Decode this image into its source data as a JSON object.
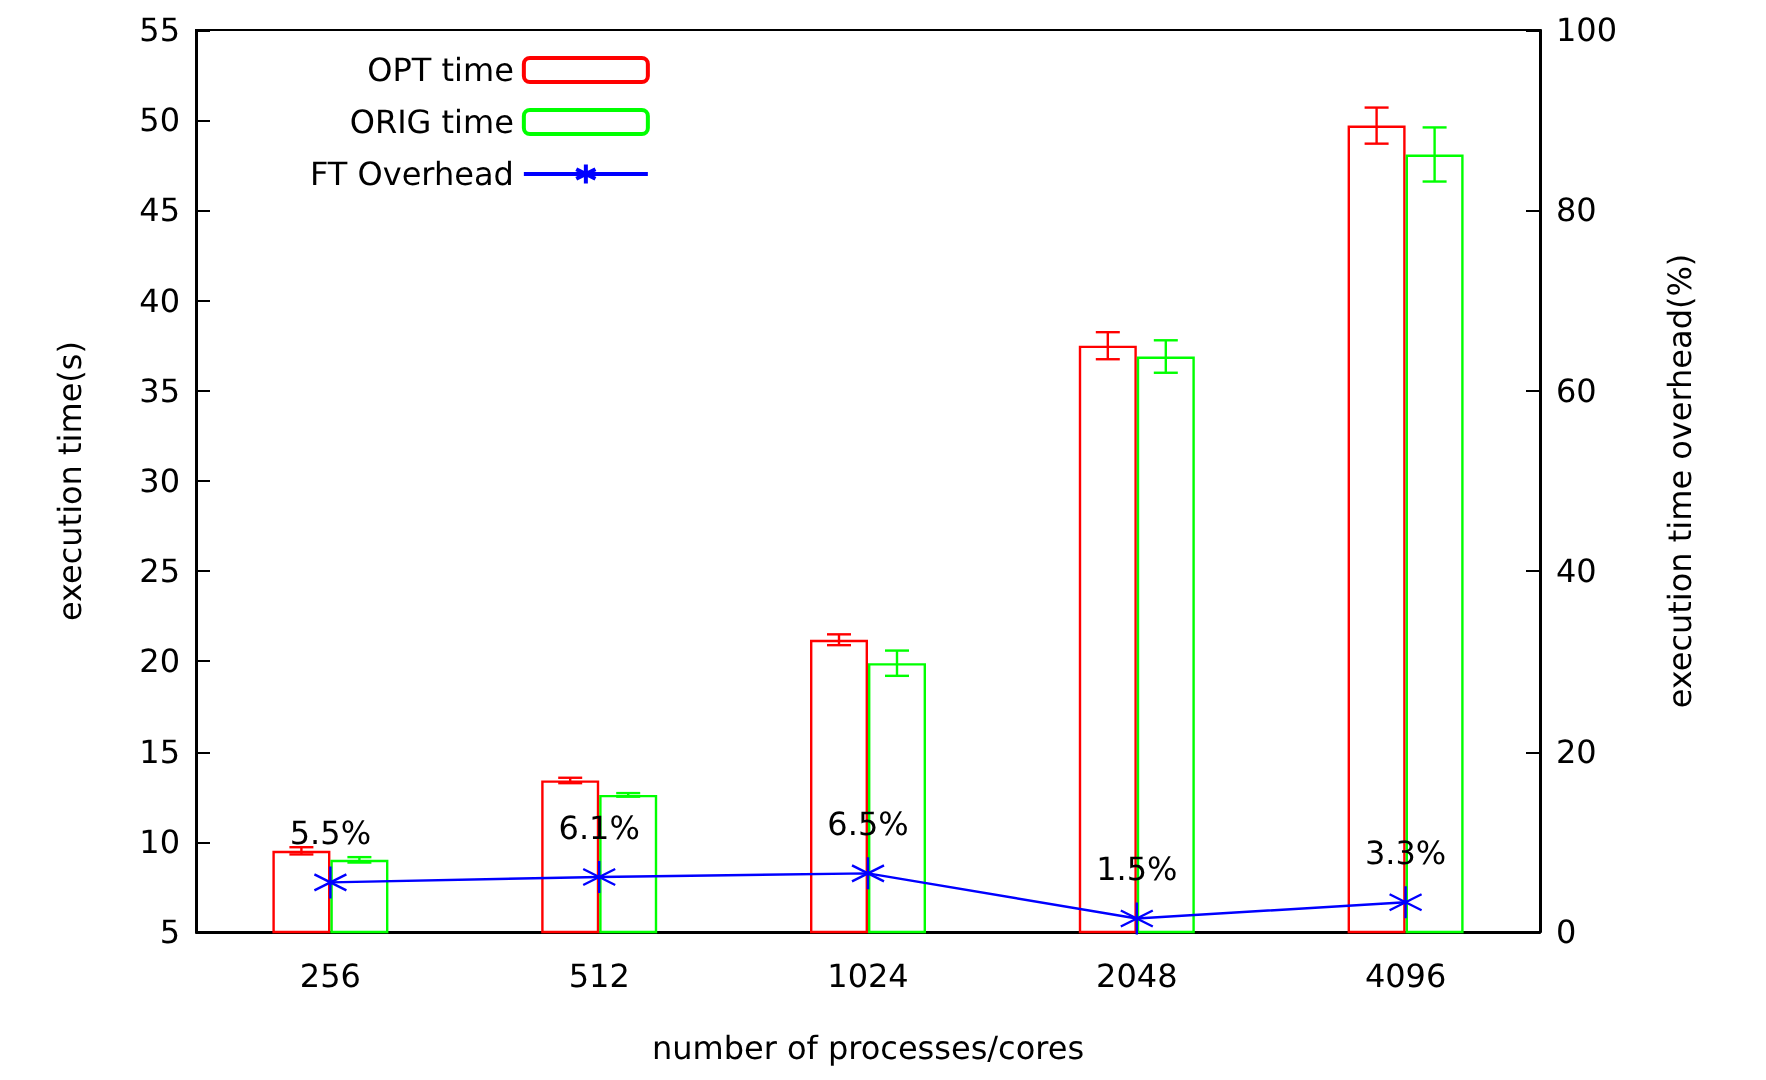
{
  "chart_data": {
    "type": "bar",
    "xlabel": "number of processes/cores",
    "ylabel": "execution time(s)",
    "y2label": "execution time overhead(%)",
    "categories": [
      "256",
      "512",
      "1024",
      "2048",
      "4096"
    ],
    "series": [
      {
        "name": "OPT time",
        "color": "#ff0000",
        "values": [
          9.5,
          13.4,
          21.2,
          37.5,
          49.7
        ],
        "errors": [
          0.2,
          0.15,
          0.3,
          0.75,
          1.0
        ]
      },
      {
        "name": "ORIG time",
        "color": "#00ff00",
        "values": [
          9.0,
          12.6,
          19.9,
          36.9,
          48.1
        ],
        "errors": [
          0.15,
          0.1,
          0.7,
          0.9,
          1.5
        ]
      },
      {
        "name": "FT Overhead",
        "type": "line",
        "axis": "y2",
        "color": "#0000ff",
        "marker": "cross",
        "values": [
          5.5,
          6.1,
          6.5,
          1.5,
          3.3
        ],
        "value_labels": [
          "5.5%",
          "6.1%",
          "6.5%",
          "1.5%",
          "3.3%"
        ]
      }
    ],
    "ylim": [
      5,
      55
    ],
    "yticks": [
      5,
      10,
      15,
      20,
      25,
      30,
      35,
      40,
      45,
      50,
      55
    ],
    "y2lim": [
      0,
      100
    ],
    "y2ticks": [
      0,
      20,
      40,
      60,
      80,
      100
    ],
    "grid": false,
    "legend": "top left"
  }
}
